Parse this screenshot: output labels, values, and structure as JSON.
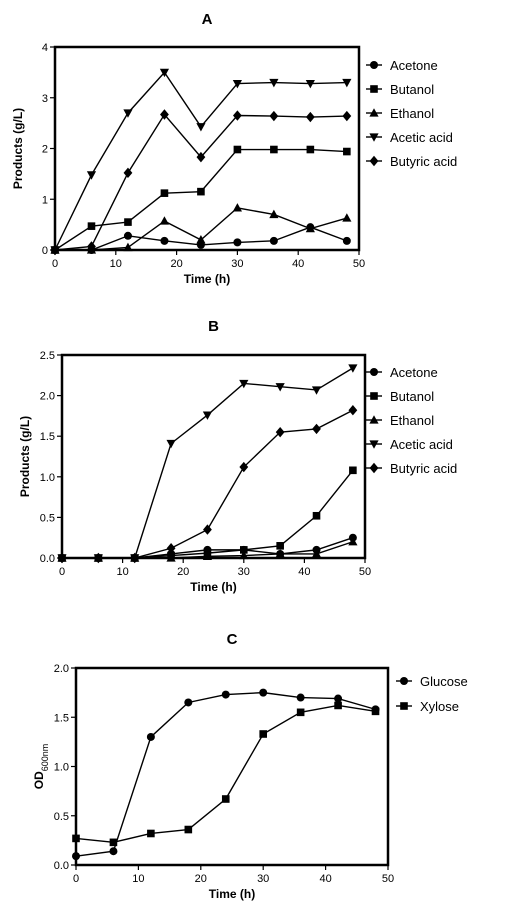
{
  "chart_data": [
    {
      "type": "line",
      "title": "A",
      "xlabel": "Time (h)",
      "ylabel": "Products (g/L)",
      "xlim": [
        0,
        50
      ],
      "ylim": [
        0,
        4
      ],
      "xticks": [
        0,
        10,
        20,
        30,
        40,
        50
      ],
      "yticks": [
        0,
        1,
        2,
        3,
        4
      ],
      "legend_position": "right",
      "grid": false,
      "series": [
        {
          "name": "Acetone",
          "marker": "circle",
          "x": [
            0,
            6,
            12,
            18,
            24,
            30,
            36,
            42,
            48
          ],
          "y": [
            0.0,
            0.0,
            0.28,
            0.18,
            0.1,
            0.15,
            0.18,
            0.45,
            0.18
          ]
        },
        {
          "name": "Butanol",
          "marker": "square",
          "x": [
            0,
            6,
            12,
            18,
            24,
            30,
            36,
            42,
            48
          ],
          "y": [
            0.0,
            0.47,
            0.55,
            1.12,
            1.15,
            1.98,
            1.98,
            1.98,
            1.94
          ]
        },
        {
          "name": "Ethanol",
          "marker": "triangle-up",
          "x": [
            0,
            6,
            12,
            18,
            24,
            30,
            36,
            42,
            48
          ],
          "y": [
            0.0,
            0.0,
            0.05,
            0.57,
            0.2,
            0.83,
            0.7,
            0.42,
            0.63
          ]
        },
        {
          "name": "Acetic acid",
          "marker": "triangle-down",
          "x": [
            0,
            6,
            12,
            18,
            24,
            30,
            36,
            42,
            48
          ],
          "y": [
            0.0,
            1.48,
            2.7,
            3.5,
            2.43,
            3.28,
            3.3,
            3.28,
            3.3
          ]
        },
        {
          "name": "Butyric acid",
          "marker": "diamond",
          "x": [
            0,
            6,
            12,
            18,
            24,
            30,
            36,
            42,
            48
          ],
          "y": [
            0.0,
            0.07,
            1.52,
            2.67,
            1.83,
            2.65,
            2.64,
            2.62,
            2.64
          ]
        }
      ]
    },
    {
      "type": "line",
      "title": "B",
      "xlabel": "Time (h)",
      "ylabel": "Products (g/L)",
      "xlim": [
        0,
        50
      ],
      "ylim": [
        0,
        2.5
      ],
      "xticks": [
        0,
        10,
        20,
        30,
        40,
        50
      ],
      "yticks": [
        "0.0",
        "0.5",
        "1.0",
        "1.5",
        "2.0",
        "2.5"
      ],
      "legend_position": "right",
      "grid": false,
      "series": [
        {
          "name": "Acetone",
          "marker": "circle",
          "x": [
            0,
            6,
            12,
            18,
            24,
            30,
            36,
            42,
            48
          ],
          "y": [
            0.0,
            0.0,
            0.0,
            0.05,
            0.1,
            0.1,
            0.05,
            0.1,
            0.25
          ]
        },
        {
          "name": "Butanol",
          "marker": "square",
          "x": [
            0,
            6,
            12,
            18,
            24,
            30,
            36,
            42,
            48
          ],
          "y": [
            0.0,
            0.0,
            0.0,
            0.03,
            0.06,
            0.1,
            0.15,
            0.52,
            1.08
          ]
        },
        {
          "name": "Ethanol",
          "marker": "triangle-up",
          "x": [
            0,
            6,
            12,
            18,
            24,
            30,
            36,
            42,
            48
          ],
          "y": [
            0.0,
            0.0,
            0.0,
            0.0,
            0.02,
            0.03,
            0.05,
            0.05,
            0.2
          ]
        },
        {
          "name": "Acetic acid",
          "marker": "triangle-down",
          "x": [
            0,
            6,
            12,
            18,
            24,
            30,
            36,
            42,
            48
          ],
          "y": [
            0.0,
            0.0,
            0.0,
            1.41,
            1.76,
            2.15,
            2.11,
            2.07,
            2.34
          ]
        },
        {
          "name": "Butyric acid",
          "marker": "diamond",
          "x": [
            0,
            6,
            12,
            18,
            24,
            30,
            36,
            42,
            48
          ],
          "y": [
            0.0,
            0.0,
            0.0,
            0.12,
            0.35,
            1.12,
            1.55,
            1.59,
            1.82
          ]
        }
      ]
    },
    {
      "type": "line",
      "title": "C",
      "xlabel": "Time (h)",
      "ylabel": "OD",
      "ylabel_subscript": "600nm",
      "xlim": [
        0,
        50
      ],
      "ylim": [
        0,
        2.0
      ],
      "xticks": [
        0,
        10,
        20,
        30,
        40,
        50
      ],
      "yticks": [
        "0.0",
        "0.5",
        "1.0",
        "1.5",
        "2.0"
      ],
      "legend_position": "right",
      "grid": false,
      "series": [
        {
          "name": "Glucose",
          "marker": "circle",
          "x": [
            0,
            6,
            12,
            18,
            24,
            30,
            36,
            42,
            48
          ],
          "y": [
            0.09,
            0.14,
            1.3,
            1.65,
            1.73,
            1.75,
            1.7,
            1.69,
            1.58
          ]
        },
        {
          "name": "Xylose",
          "marker": "square",
          "x": [
            0,
            6,
            12,
            18,
            24,
            30,
            36,
            42,
            48
          ],
          "y": [
            0.27,
            0.23,
            0.32,
            0.36,
            0.67,
            1.33,
            1.55,
            1.62,
            1.56
          ]
        }
      ]
    }
  ]
}
